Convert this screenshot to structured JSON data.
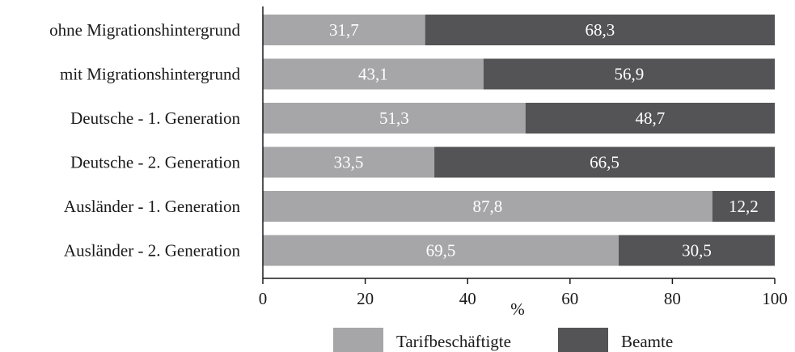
{
  "chart_data": {
    "type": "bar",
    "orientation": "horizontal",
    "stacked": true,
    "categories": [
      "ohne Migrationshintergrund",
      "mit Migrationshintergrund",
      "Deutsche - 1. Generation",
      "Deutsche - 2. Generation",
      "Ausländer - 1. Generation",
      "Ausländer - 2. Generation"
    ],
    "series": [
      {
        "name": "Tarifbeschäftigte",
        "color": "#a6a6a8",
        "values": [
          31.7,
          43.1,
          51.3,
          33.5,
          87.8,
          69.5
        ],
        "labels": [
          "31,7",
          "43,1",
          "51,3",
          "33,5",
          "87,8",
          "69,5"
        ]
      },
      {
        "name": "Beamte",
        "color": "#545456",
        "values": [
          68.3,
          56.9,
          48.7,
          66.5,
          12.2,
          30.5
        ],
        "labels": [
          "68,3",
          "56,9",
          "48,7",
          "66,5",
          "12,2",
          "30,5"
        ]
      }
    ],
    "xlabel": "%",
    "ylabel": "",
    "title": "",
    "xlim": [
      0,
      100
    ],
    "xticks": [
      "0",
      "20",
      "40",
      "60",
      "80",
      "100"
    ],
    "grid": false,
    "legend": "bottom"
  }
}
